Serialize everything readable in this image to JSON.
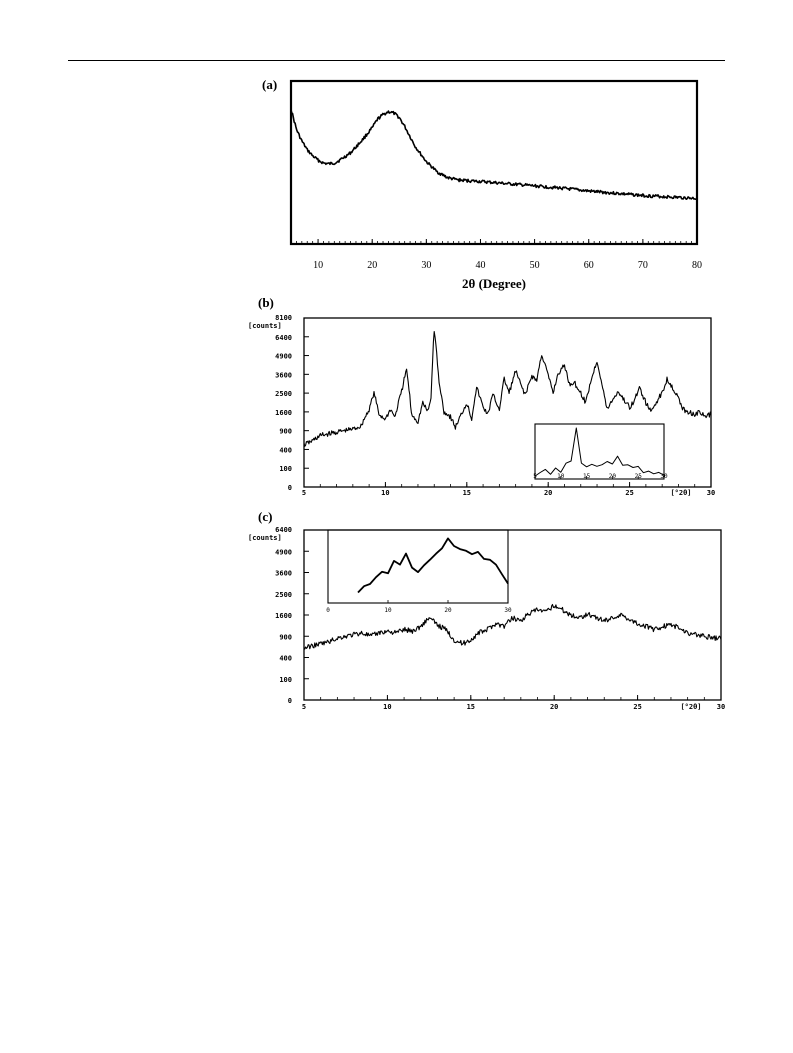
{
  "page": {},
  "chart_data": [
    {
      "panel": "(a)",
      "type": "line",
      "xlabel": "2θ (Degree)",
      "ylabel": "",
      "xlim": [
        5,
        80
      ],
      "xticks": [
        10,
        20,
        30,
        40,
        50,
        60,
        70,
        80
      ],
      "yticks": [],
      "grid": false,
      "series": [
        {
          "x": [
            5,
            6,
            7,
            8,
            9,
            10,
            11,
            12,
            13,
            14,
            16,
            18,
            20,
            21,
            22,
            23,
            24,
            25,
            26,
            27,
            28,
            30,
            32,
            34,
            36,
            38,
            40,
            45,
            50,
            55,
            60,
            65,
            70,
            75,
            80
          ],
          "y": [
            0.92,
            0.78,
            0.7,
            0.64,
            0.6,
            0.57,
            0.55,
            0.545,
            0.55,
            0.57,
            0.62,
            0.7,
            0.79,
            0.85,
            0.88,
            0.9,
            0.89,
            0.86,
            0.8,
            0.73,
            0.66,
            0.56,
            0.49,
            0.45,
            0.435,
            0.43,
            0.425,
            0.41,
            0.395,
            0.38,
            0.36,
            0.345,
            0.33,
            0.32,
            0.31
          ]
        }
      ]
    },
    {
      "panel": "(b)",
      "type": "line",
      "xlabel": "[°2θ]",
      "ylabel": "[counts]",
      "xlim": [
        5,
        30
      ],
      "ylim": [
        0,
        8100
      ],
      "xticks": [
        5,
        10,
        15,
        20,
        25,
        30
      ],
      "yticks": [
        0,
        100,
        400,
        900,
        1600,
        2500,
        3600,
        4900,
        6400,
        8100
      ],
      "y_scale": "sqrt",
      "grid": false,
      "series": [
        {
          "x": [
            5,
            5.5,
            6,
            6.5,
            7,
            7.5,
            8,
            8.5,
            9,
            9.3,
            9.6,
            10,
            10.3,
            10.6,
            11,
            11.3,
            11.6,
            12,
            12.3,
            12.6,
            12.8,
            13,
            13.3,
            13.6,
            14,
            14.3,
            14.6,
            15,
            15.3,
            15.6,
            16,
            16.3,
            16.6,
            17,
            17.3,
            17.6,
            18,
            18.3,
            18.6,
            19,
            19.3,
            19.6,
            20,
            20.3,
            20.6,
            21,
            21.3,
            21.6,
            22,
            22.3,
            22.6,
            23,
            23.3,
            23.6,
            24,
            24.3,
            24.6,
            25,
            25.3,
            25.6,
            26,
            26.3,
            26.6,
            27,
            27.3,
            27.6,
            28,
            28.3,
            28.6,
            29,
            29.3,
            29.6,
            30
          ],
          "y": [
            500,
            600,
            750,
            800,
            850,
            900,
            950,
            1050,
            1700,
            2500,
            1500,
            1300,
            1700,
            1400,
            2600,
            3900,
            1500,
            1200,
            2000,
            1600,
            2200,
            7000,
            3000,
            1600,
            1400,
            1000,
            1400,
            2000,
            1300,
            2800,
            1800,
            1500,
            2400,
            1700,
            3300,
            2500,
            3800,
            3000,
            2400,
            3500,
            3200,
            5000,
            3500,
            2500,
            3600,
            4200,
            3000,
            3100,
            2500,
            2000,
            3100,
            4500,
            3000,
            1700,
            2200,
            2600,
            2200,
            1800,
            2100,
            2800,
            2000,
            1600,
            2000,
            2500,
            3300,
            2900,
            2200,
            1700,
            1600,
            1500,
            1600,
            1400,
            1500
          ]
        }
      ],
      "inset": {
        "xticks": [
          5,
          10,
          15,
          20,
          25,
          30
        ],
        "xlim": [
          5,
          30
        ],
        "series": [
          {
            "x": [
              5,
              6,
              7,
              8,
              9,
              10,
              11,
              12,
              13,
              14,
              15,
              16,
              17,
              18,
              19,
              20,
              21,
              22,
              23,
              24,
              25,
              26,
              27,
              28,
              29,
              30
            ],
            "y": [
              0.02,
              0.05,
              0.12,
              0.05,
              0.2,
              0.1,
              0.3,
              0.35,
              1.0,
              0.3,
              0.2,
              0.25,
              0.18,
              0.22,
              0.3,
              0.28,
              0.4,
              0.2,
              0.25,
              0.15,
              0.18,
              0.1,
              0.08,
              0.07,
              0.05,
              0.04
            ]
          }
        ]
      }
    },
    {
      "panel": "(c)",
      "type": "line",
      "xlabel": "[°2θ]",
      "ylabel": "[counts]",
      "xlim": [
        5,
        30
      ],
      "ylim": [
        0,
        6400
      ],
      "xticks": [
        5,
        10,
        15,
        20,
        25,
        30
      ],
      "yticks": [
        0,
        100,
        400,
        900,
        1600,
        2500,
        3600,
        4900,
        6400
      ],
      "y_scale": "sqrt",
      "grid": false,
      "series": [
        {
          "x": [
            5,
            5.5,
            6,
            6.5,
            7,
            7.5,
            8,
            8.5,
            9,
            9.5,
            10,
            10.5,
            11,
            11.5,
            12,
            12.5,
            13,
            13.5,
            14,
            14.5,
            15,
            15.5,
            16,
            16.5,
            17,
            17.5,
            18,
            18.5,
            19,
            19.5,
            20,
            20.5,
            21,
            21.5,
            22,
            22.5,
            23,
            23.5,
            24,
            24.5,
            25,
            25.5,
            26,
            26.5,
            27,
            27.5,
            28,
            28.5,
            29,
            29.5,
            30
          ],
          "y": [
            600,
            650,
            700,
            750,
            850,
            900,
            950,
            1000,
            900,
            1000,
            1050,
            1000,
            1100,
            1050,
            1200,
            1500,
            1250,
            1100,
            800,
            700,
            800,
            1000,
            1100,
            1300,
            1200,
            1500,
            1400,
            1650,
            1800,
            1700,
            2000,
            1800,
            1600,
            1500,
            1650,
            1500,
            1400,
            1500,
            1600,
            1450,
            1300,
            1200,
            1100,
            1200,
            1250,
            1150,
            1000,
            950,
            900,
            850,
            850
          ]
        }
      ],
      "inset": {
        "xticks": [
          0,
          10,
          20,
          30
        ],
        "xlim": [
          0,
          30
        ],
        "series": [
          {
            "x": [
              5,
              6,
              7,
              8,
              9,
              10,
              11,
              12,
              13,
              14,
              15,
              16,
              17,
              18,
              19,
              20,
              21,
              22,
              23,
              24,
              25,
              26,
              27,
              28,
              29,
              30
            ],
            "y": [
              0.1,
              0.2,
              0.25,
              0.35,
              0.45,
              0.4,
              0.6,
              0.55,
              0.7,
              0.5,
              0.45,
              0.55,
              0.6,
              0.7,
              0.8,
              0.95,
              0.85,
              0.8,
              0.75,
              0.7,
              0.72,
              0.65,
              0.6,
              0.55,
              0.4,
              0.25
            ]
          }
        ]
      }
    }
  ]
}
